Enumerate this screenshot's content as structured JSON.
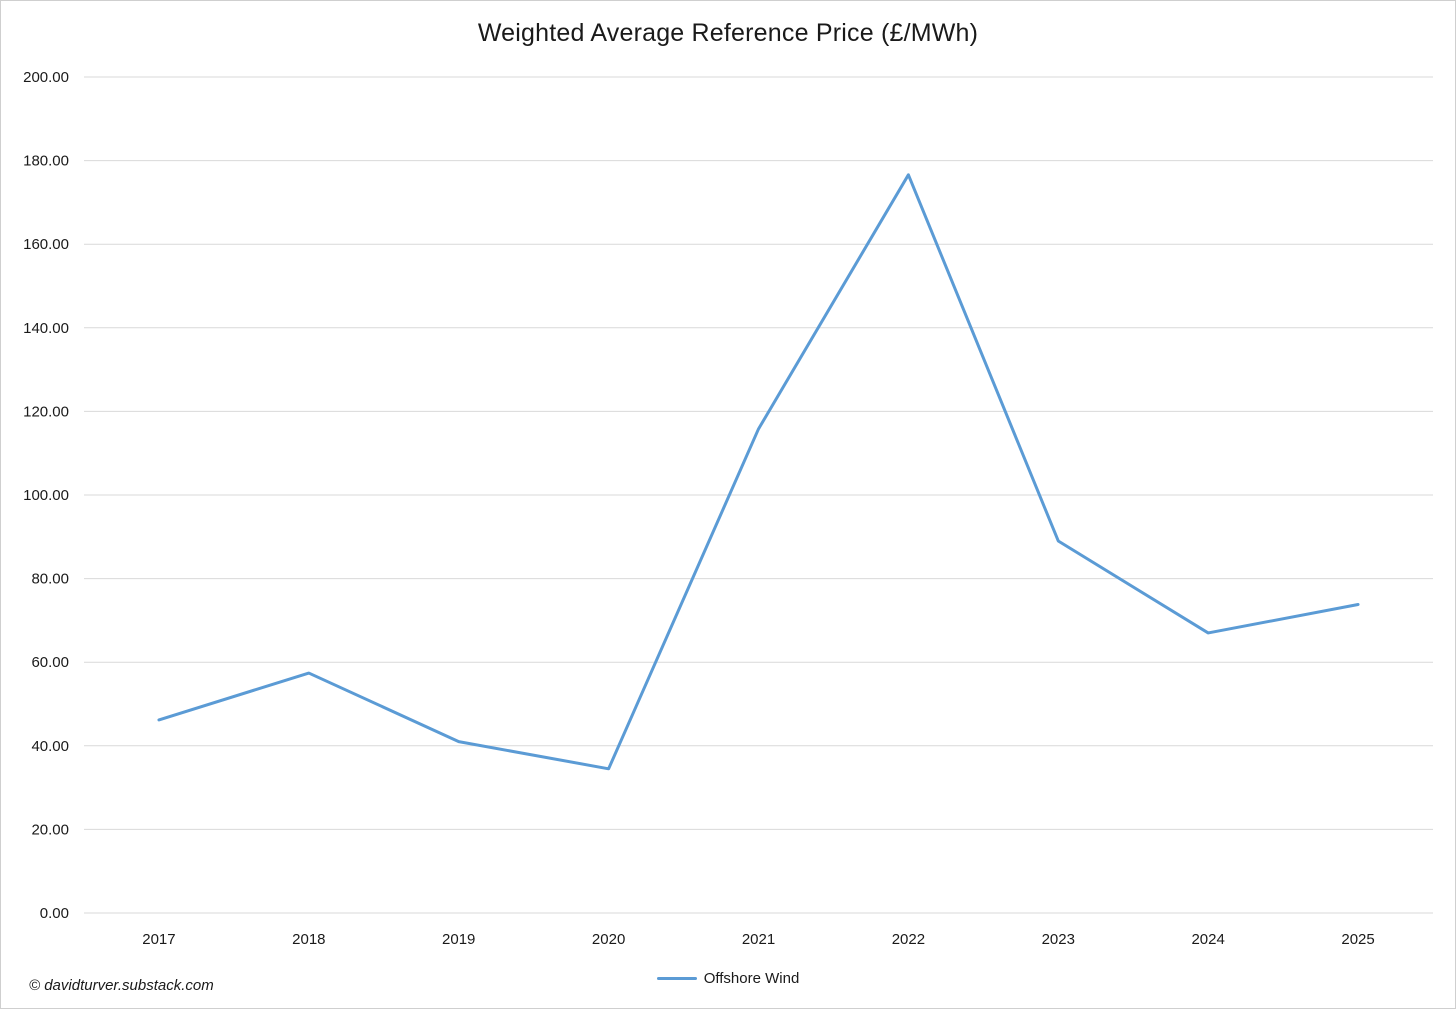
{
  "chart_data": {
    "type": "line",
    "title": "Weighted Average Reference Price (£/MWh)",
    "categories": [
      "2017",
      "2018",
      "2019",
      "2020",
      "2021",
      "2022",
      "2023",
      "2024",
      "2025"
    ],
    "series": [
      {
        "name": "Offshore Wind",
        "color": "#5B9BD5",
        "values": [
          46.2,
          57.4,
          41.0,
          34.5,
          115.8,
          176.6,
          89.0,
          67.0,
          73.8
        ]
      }
    ],
    "xlabel": "",
    "ylabel": "",
    "ylim": [
      0,
      200
    ],
    "y_ticks": [
      0,
      20,
      40,
      60,
      80,
      100,
      120,
      140,
      160,
      180,
      200
    ],
    "y_tick_labels": [
      "0.00",
      "20.00",
      "40.00",
      "60.00",
      "80.00",
      "100.00",
      "120.00",
      "140.00",
      "160.00",
      "180.00",
      "200.00"
    ],
    "grid": true,
    "gridline_color": "#D9D9D9",
    "tick_label_color": "#1a1a1a",
    "legend_position": "bottom"
  },
  "footer": {
    "copyright": "© davidturver.substack.com"
  }
}
